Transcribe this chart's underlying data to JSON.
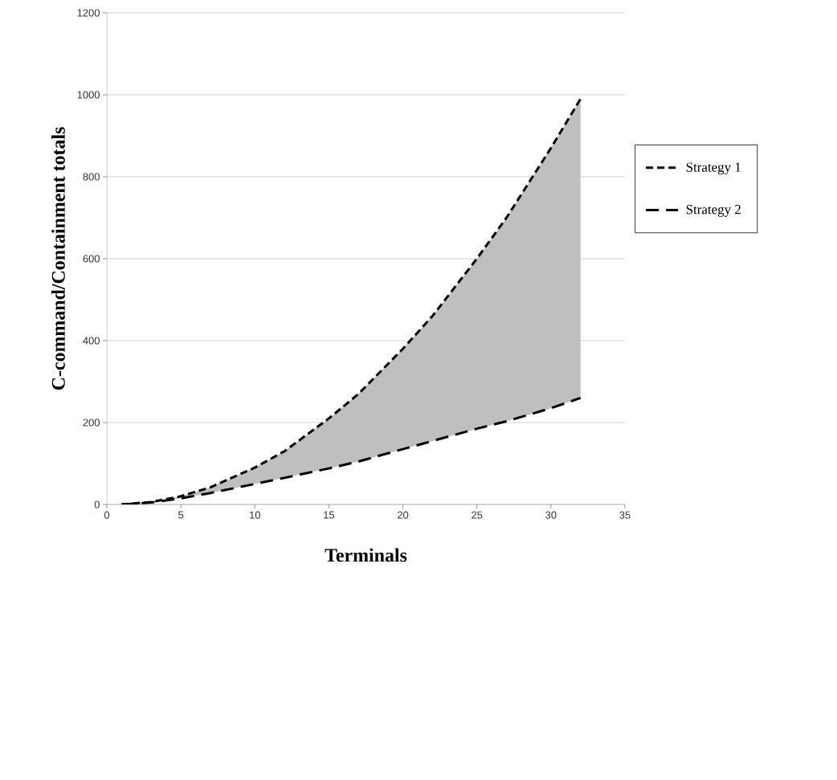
{
  "chart_data": {
    "type": "line",
    "xlabel": "Terminals",
    "ylabel": "C-command/Containment totals",
    "x": [
      1,
      3,
      5,
      7,
      10,
      12,
      15,
      17,
      20,
      22,
      25,
      27,
      30,
      32
    ],
    "series": [
      {
        "name": "Strategy 1",
        "color": "#000000",
        "line_style": "dashed",
        "values": [
          0,
          6,
          20,
          42,
          90,
          130,
          210,
          270,
          380,
          460,
          600,
          700,
          870,
          990
        ],
        "lower": [
          0,
          5,
          15,
          28,
          50,
          65,
          88,
          105,
          135,
          155,
          185,
          203,
          235,
          260
        ],
        "upper": [
          0,
          6,
          20,
          42,
          90,
          130,
          210,
          270,
          380,
          460,
          600,
          700,
          870,
          990
        ]
      },
      {
        "name": "Strategy 2",
        "color": "#000000",
        "line_style": "dashed",
        "values": [
          0,
          5,
          15,
          28,
          50,
          65,
          88,
          105,
          135,
          155,
          185,
          203,
          235,
          260
        ]
      }
    ],
    "xlim": [
      0,
      35
    ],
    "ylim": [
      0,
      1200
    ],
    "xticks": [
      0,
      5,
      10,
      15,
      20,
      25,
      30,
      35
    ],
    "yticks": [
      0,
      200,
      400,
      600,
      800,
      1000,
      1200
    ],
    "grid": "y",
    "legend": "right",
    "marker": "none"
  }
}
